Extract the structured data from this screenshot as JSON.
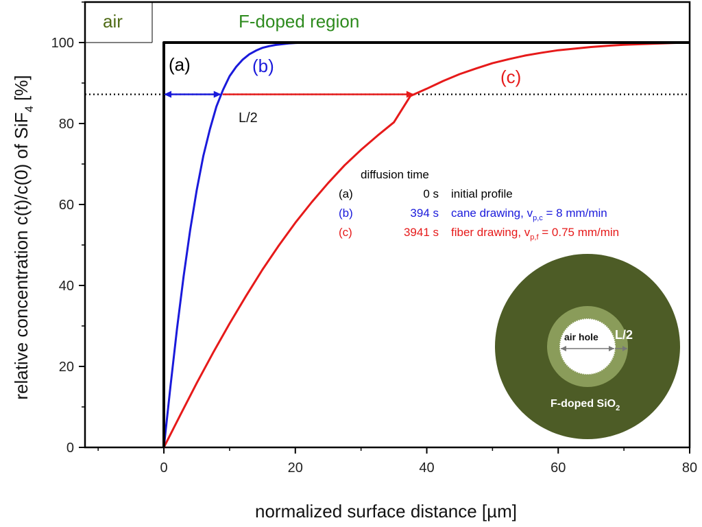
{
  "chart_data": {
    "type": "line",
    "xlabel": "normalized surface distance  [µm]",
    "ylabel_main": "relative concentration c(t)/c(0) of SiF",
    "ylabel_sub": "4",
    "ylabel_unit": " [%]",
    "xlim": [
      -12,
      80
    ],
    "ylim": [
      0,
      110
    ],
    "x_ticks": [
      0,
      20,
      40,
      60,
      80
    ],
    "y_ticks": [
      0,
      20,
      40,
      60,
      80,
      100
    ],
    "x_tick_labels": [
      "0",
      "20",
      "40",
      "60",
      "80"
    ],
    "y_tick_labels": [
      "0",
      "20",
      "40",
      "60",
      "80",
      "100"
    ],
    "regions": {
      "air": {
        "label": "air",
        "color": "#4f6b16"
      },
      "doped": {
        "label": "F-doped region",
        "color": "#2e8b1e"
      }
    },
    "threshold": {
      "y": 87.2,
      "label": "L/2"
    },
    "series": [
      {
        "id": "a",
        "name": "(a)",
        "color": "#000000",
        "diffusion_time": "0 s",
        "description": "initial profile",
        "description_sub": "",
        "description_tail": "",
        "x": [
          0,
          0,
          80
        ],
        "y": [
          0,
          100,
          100
        ]
      },
      {
        "id": "b",
        "name": "(b)",
        "color": "#1a1adb",
        "diffusion_time": "394 s",
        "description": "cane drawing, v",
        "description_sub": "p,c",
        "description_tail": " = 8 mm/min",
        "x": [
          0,
          1,
          2,
          3,
          4,
          5,
          6,
          7,
          8,
          9,
          10,
          11,
          12,
          13,
          14,
          15,
          16,
          17,
          18,
          19,
          20,
          21,
          22,
          23,
          24,
          25,
          30,
          40,
          60,
          80
        ],
        "y": [
          0,
          15.0,
          29.3,
          42.2,
          53.7,
          63.6,
          72.0,
          78.6,
          84.2,
          88.3,
          91.7,
          94.0,
          95.8,
          97.1,
          98.0,
          98.7,
          99.1,
          99.4,
          99.6,
          99.8,
          99.9,
          99.95,
          99.98,
          100,
          100,
          100,
          100,
          100,
          100,
          100
        ]
      },
      {
        "id": "c",
        "name": "(c)",
        "color": "#e61a1a",
        "diffusion_time": "3941 s",
        "description": "fiber drawing, v",
        "description_sub": "p,f",
        "description_tail": " = 0.75 mm/min",
        "x": [
          0,
          2.5,
          5,
          7.5,
          10,
          12.5,
          15,
          17.5,
          20,
          22.5,
          25,
          27.5,
          30,
          32.5,
          35,
          37.5,
          40,
          42.5,
          45,
          47.5,
          50,
          52.5,
          55,
          57.5,
          60,
          62.5,
          65,
          67.5,
          70,
          72.5,
          75,
          77.5,
          80
        ],
        "y": [
          0,
          8.0,
          15.9,
          23.4,
          30.6,
          37.4,
          43.9,
          49.9,
          55.5,
          60.6,
          65.3,
          69.7,
          73.5,
          77.0,
          80.3,
          86.8,
          88.6,
          90.5,
          92.2,
          93.6,
          94.9,
          95.9,
          96.8,
          97.5,
          98.1,
          98.5,
          98.9,
          99.2,
          99.45,
          99.6,
          99.75,
          99.9,
          100
        ]
      }
    ],
    "legend_header": "diffusion time",
    "inset": {
      "outer_label": "F-doped SiO",
      "outer_label_sub": "2",
      "hole_label": "air hole",
      "ring_label": "L/2",
      "outer_color": "#4d5c26",
      "ring_color": "#8a9c5a",
      "hole_color": "#ffffff"
    }
  }
}
